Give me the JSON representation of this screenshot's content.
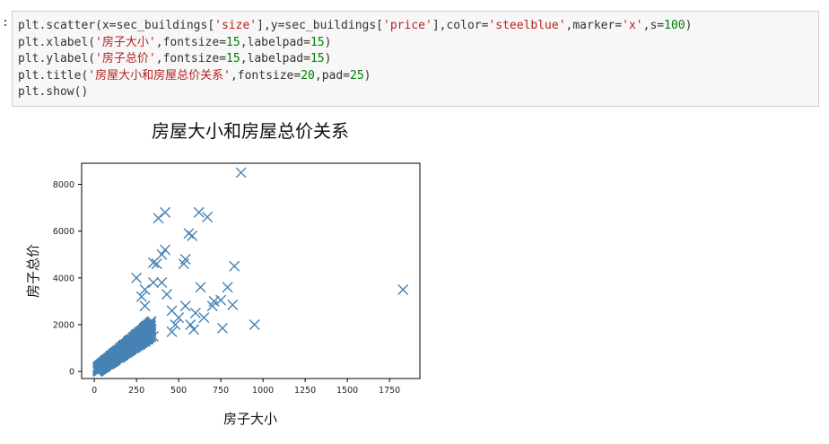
{
  "cell": {
    "prompt": ":",
    "lines": [
      [
        {
          "t": "plt.scatter(x=sec_buildings[",
          "c": "kw"
        },
        {
          "t": "'size'",
          "c": "str"
        },
        {
          "t": "],y=sec_buildings[",
          "c": "kw"
        },
        {
          "t": "'price'",
          "c": "str"
        },
        {
          "t": "],color=",
          "c": "kw"
        },
        {
          "t": "'steelblue'",
          "c": "str"
        },
        {
          "t": ",marker=",
          "c": "kw"
        },
        {
          "t": "'x'",
          "c": "str"
        },
        {
          "t": ",s=",
          "c": "kw"
        },
        {
          "t": "100",
          "c": "num"
        },
        {
          "t": ")",
          "c": "kw"
        }
      ],
      [
        {
          "t": "plt.xlabel(",
          "c": "kw"
        },
        {
          "t": "'房子大小'",
          "c": "str"
        },
        {
          "t": ",fontsize=",
          "c": "kw"
        },
        {
          "t": "15",
          "c": "num"
        },
        {
          "t": ",labelpad=",
          "c": "kw"
        },
        {
          "t": "15",
          "c": "num"
        },
        {
          "t": ")",
          "c": "kw"
        }
      ],
      [
        {
          "t": "plt.ylabel(",
          "c": "kw"
        },
        {
          "t": "'房子总价'",
          "c": "str"
        },
        {
          "t": ",fontsize=",
          "c": "kw"
        },
        {
          "t": "15",
          "c": "num"
        },
        {
          "t": ",labelpad=",
          "c": "kw"
        },
        {
          "t": "15",
          "c": "num"
        },
        {
          "t": ")",
          "c": "kw"
        }
      ],
      [
        {
          "t": "plt.title(",
          "c": "kw"
        },
        {
          "t": "'房屋大小和房屋总价关系'",
          "c": "str"
        },
        {
          "t": ",fontsize=",
          "c": "kw"
        },
        {
          "t": "20",
          "c": "num"
        },
        {
          "t": ",pad=",
          "c": "kw"
        },
        {
          "t": "25",
          "c": "num"
        },
        {
          "t": ")",
          "c": "kw"
        }
      ],
      [
        {
          "t": "plt.show()",
          "c": "kw"
        }
      ]
    ]
  },
  "chart_data": {
    "type": "scatter",
    "title": "房屋大小和房屋总价关系",
    "xlabel": "房子大小",
    "ylabel": "房子总价",
    "xlim": [
      -75,
      1930
    ],
    "ylim": [
      -300,
      8900
    ],
    "xticks": [
      0,
      250,
      500,
      750,
      1000,
      1250,
      1500,
      1750
    ],
    "yticks": [
      0,
      2000,
      4000,
      6000,
      8000
    ],
    "marker": "x",
    "color": "#4682b4",
    "grid": false,
    "points": [
      [
        870,
        8500
      ],
      [
        420,
        6800
      ],
      [
        380,
        6550
      ],
      [
        620,
        6800
      ],
      [
        670,
        6600
      ],
      [
        560,
        5900
      ],
      [
        580,
        5800
      ],
      [
        420,
        5200
      ],
      [
        400,
        5000
      ],
      [
        350,
        4650
      ],
      [
        370,
        4600
      ],
      [
        540,
        4800
      ],
      [
        530,
        4600
      ],
      [
        830,
        4500
      ],
      [
        1830,
        3500
      ],
      [
        950,
        2000
      ],
      [
        790,
        3600
      ],
      [
        630,
        3600
      ],
      [
        710,
        3000
      ],
      [
        750,
        3050
      ],
      [
        700,
        2800
      ],
      [
        820,
        2850
      ],
      [
        760,
        1850
      ],
      [
        590,
        1800
      ],
      [
        570,
        2000
      ],
      [
        500,
        2300
      ],
      [
        460,
        2600
      ],
      [
        430,
        3300
      ],
      [
        400,
        3800
      ],
      [
        350,
        3800
      ],
      [
        300,
        3500
      ],
      [
        250,
        4000
      ],
      [
        280,
        3200
      ],
      [
        460,
        1700
      ],
      [
        480,
        2000
      ],
      [
        540,
        2800
      ],
      [
        600,
        2500
      ],
      [
        650,
        2300
      ],
      [
        350,
        1500
      ],
      [
        300,
        2800
      ]
    ],
    "cloud": {
      "x_min": 20,
      "x_max": 340,
      "slope": 5.3,
      "spread": 520,
      "count": 1400
    }
  }
}
